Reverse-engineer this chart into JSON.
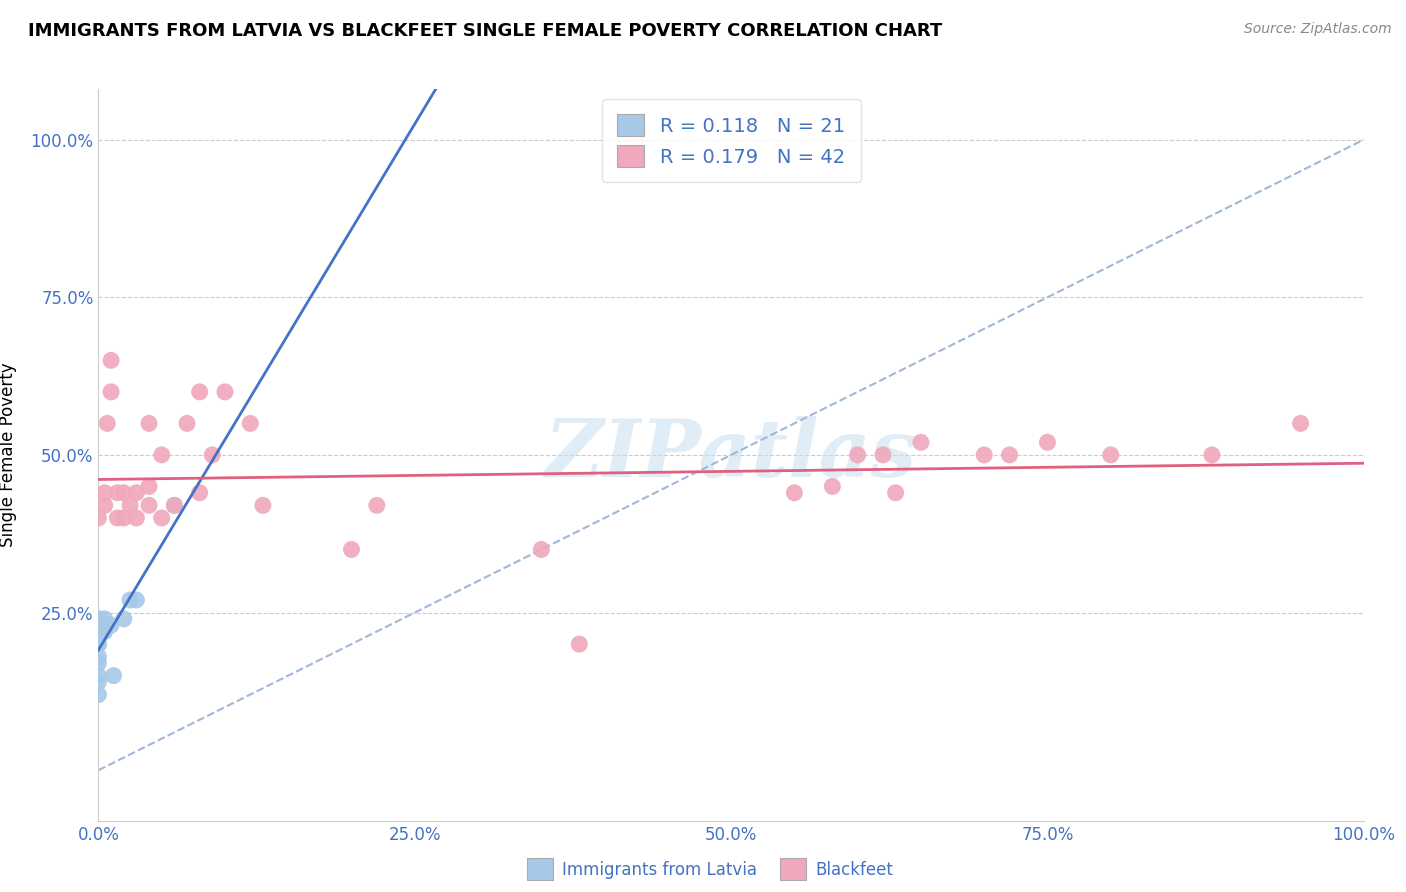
{
  "title": "IMMIGRANTS FROM LATVIA VS BLACKFEET SINGLE FEMALE POVERTY CORRELATION CHART",
  "source": "Source: ZipAtlas.com",
  "ylabel": "Single Female Poverty",
  "xlim": [
    0,
    1.0
  ],
  "ylim": [
    -0.08,
    1.08
  ],
  "xticks": [
    0.0,
    0.25,
    0.5,
    0.75,
    1.0
  ],
  "xtick_labels": [
    "0.0%",
    "25.0%",
    "50.0%",
    "75.0%",
    "100.0%"
  ],
  "yticks": [
    0.25,
    0.5,
    0.75,
    1.0
  ],
  "ytick_labels": [
    "25.0%",
    "50.0%",
    "75.0%",
    "100.0%"
  ],
  "latvia_R": 0.118,
  "latvia_N": 21,
  "blackfeet_R": 0.179,
  "blackfeet_N": 42,
  "latvia_color": "#a8c8e8",
  "blackfeet_color": "#f0a8bc",
  "latvia_line_color": "#4472c4",
  "blackfeet_line_color": "#e06080",
  "dash_line_color": "#a0b8d8",
  "watermark": "ZIPatlas",
  "latvia_x": [
    0.0,
    0.0,
    0.0,
    0.0,
    0.0,
    0.0,
    0.0,
    0.0,
    0.0,
    0.0,
    0.0,
    0.0,
    0.0,
    0.005,
    0.005,
    0.01,
    0.012,
    0.02,
    0.025,
    0.03,
    0.06
  ],
  "latvia_y": [
    0.12,
    0.14,
    0.15,
    0.17,
    0.18,
    0.2,
    0.2,
    0.21,
    0.22,
    0.22,
    0.23,
    0.24,
    0.24,
    0.22,
    0.24,
    0.23,
    0.15,
    0.24,
    0.27,
    0.27,
    0.42
  ],
  "blackfeet_x": [
    0.0,
    0.005,
    0.005,
    0.007,
    0.01,
    0.01,
    0.015,
    0.015,
    0.02,
    0.02,
    0.025,
    0.03,
    0.03,
    0.04,
    0.04,
    0.04,
    0.05,
    0.05,
    0.06,
    0.07,
    0.08,
    0.08,
    0.09,
    0.1,
    0.12,
    0.13,
    0.2,
    0.22,
    0.35,
    0.38,
    0.55,
    0.58,
    0.6,
    0.62,
    0.63,
    0.65,
    0.7,
    0.72,
    0.75,
    0.8,
    0.88,
    0.95
  ],
  "blackfeet_y": [
    0.4,
    0.42,
    0.44,
    0.55,
    0.6,
    0.65,
    0.4,
    0.44,
    0.4,
    0.44,
    0.42,
    0.4,
    0.44,
    0.42,
    0.45,
    0.55,
    0.4,
    0.5,
    0.42,
    0.55,
    0.44,
    0.6,
    0.5,
    0.6,
    0.55,
    0.42,
    0.35,
    0.42,
    0.35,
    0.2,
    0.44,
    0.45,
    0.5,
    0.5,
    0.44,
    0.52,
    0.5,
    0.5,
    0.52,
    0.5,
    0.5,
    0.55
  ],
  "background_color": "#ffffff",
  "grid_color": "#cccccc",
  "legend_label1": "R = 0.118   N = 21",
  "legend_label2": "R = 0.179   N = 42",
  "bottom_label1": "Immigrants from Latvia",
  "bottom_label2": "Blackfeet"
}
